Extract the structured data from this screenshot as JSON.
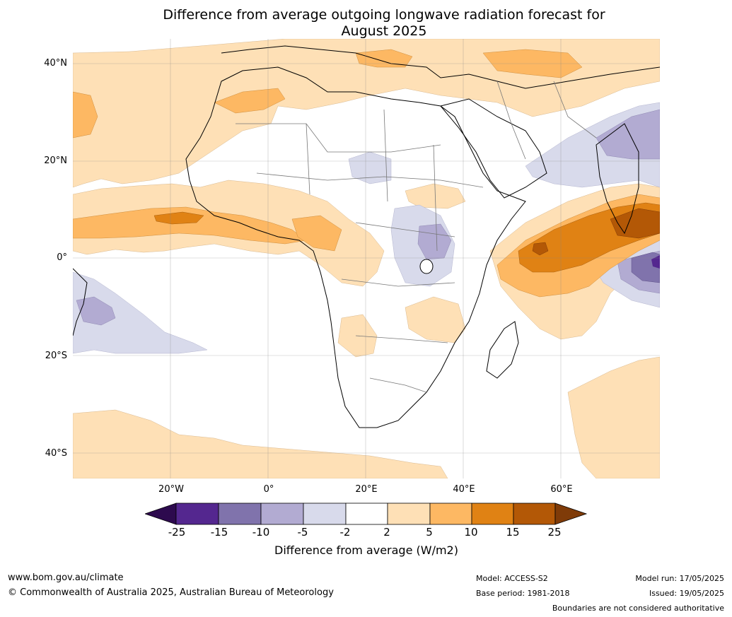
{
  "title_line1": "Difference from average outgoing longwave radiation forecast for",
  "title_line2": "August 2025",
  "lat_labels": [
    "40°N",
    "20°N",
    "0°",
    "20°S",
    "40°S"
  ],
  "lon_labels": [
    "20°W",
    "0°",
    "20°E",
    "40°E",
    "60°E"
  ],
  "colorbar": {
    "title": "Difference from average (W/m2)",
    "ticks": [
      "-25",
      "-15",
      "-10",
      "-5",
      "-2",
      "2",
      "5",
      "10",
      "15",
      "25"
    ],
    "colors": {
      "below_min": "#2d0a4e",
      "c1": "#54278f",
      "c2": "#8073ac",
      "c3": "#b2abd2",
      "c4": "#d8daeb",
      "c5": "#ffffff",
      "c6": "#fee0b6",
      "c7": "#fdb863",
      "c8": "#e08214",
      "c9": "#b35806",
      "above_max": "#7f3b08"
    }
  },
  "footer": {
    "website": "www.bom.gov.au/climate",
    "copyright": "© Commonwealth of Australia 2025, Australian Bureau of Meteorology",
    "model": "Model: ACCESS-S2",
    "base_period": "Base period: 1981-2018",
    "model_run": "Model run: 17/05/2025",
    "issued": "Issued: 19/05/2025",
    "disclaimer": "Boundaries are not considered authoritative"
  }
}
